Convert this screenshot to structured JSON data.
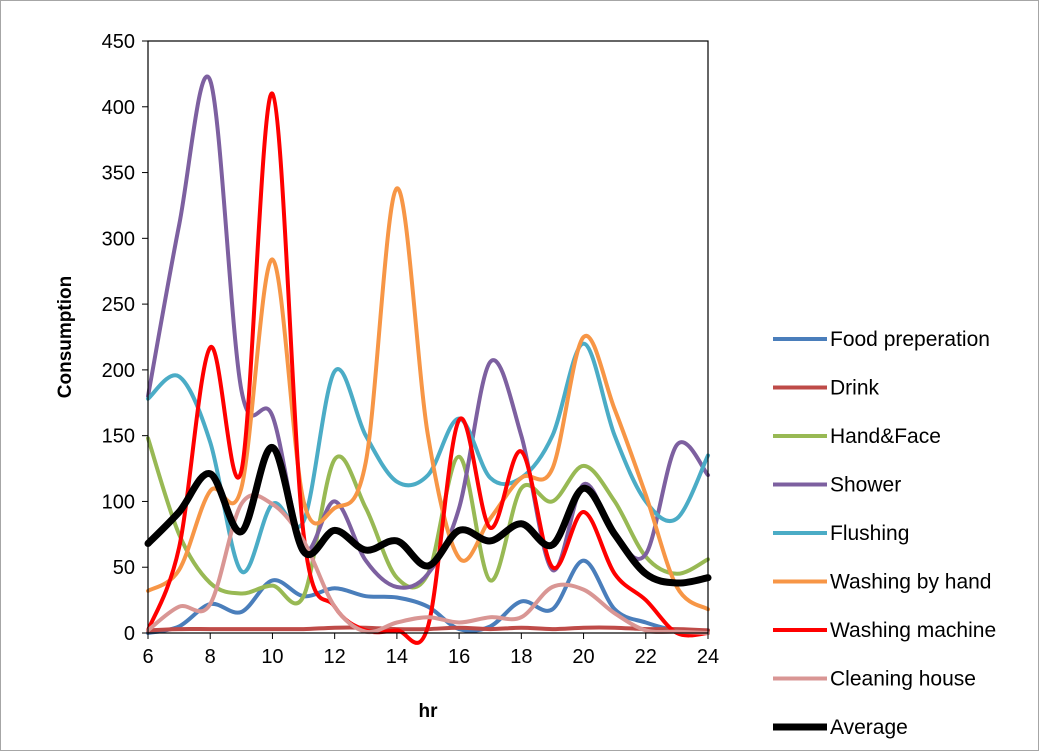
{
  "chart_data": {
    "type": "line",
    "xlabel": "hr",
    "ylabel": "Consumption",
    "xlim": [
      6,
      24
    ],
    "ylim": [
      0,
      450
    ],
    "xticks": [
      6,
      8,
      10,
      12,
      14,
      16,
      18,
      20,
      22,
      24
    ],
    "yticks": [
      0,
      50,
      100,
      150,
      200,
      250,
      300,
      350,
      400,
      450
    ],
    "grid": false,
    "legend_position": "right",
    "smoothed": true,
    "x": [
      6,
      7,
      8,
      9,
      10,
      11,
      12,
      13,
      14,
      15,
      16,
      17,
      18,
      19,
      20,
      21,
      22,
      23,
      24
    ],
    "series": [
      {
        "name": "Food preperation",
        "color": "#4a7ebb",
        "width": 4,
        "values": [
          0,
          5,
          22,
          16,
          40,
          28,
          34,
          28,
          27,
          20,
          3,
          5,
          24,
          18,
          55,
          18,
          8,
          2,
          2
        ]
      },
      {
        "name": "Drink",
        "color": "#be4b48",
        "width": 4,
        "values": [
          2,
          3,
          3,
          3,
          3,
          3,
          4,
          4,
          3,
          3,
          4,
          3,
          4,
          3,
          4,
          4,
          3,
          3,
          2
        ]
      },
      {
        "name": "Hand&Face",
        "color": "#98b954",
        "width": 4,
        "values": [
          148,
          75,
          38,
          30,
          36,
          28,
          132,
          95,
          42,
          45,
          134,
          40,
          110,
          100,
          127,
          100,
          58,
          45,
          56
        ]
      },
      {
        "name": "Shower",
        "color": "#7d60a0",
        "width": 4,
        "values": [
          180,
          310,
          420,
          185,
          165,
          64,
          100,
          55,
          35,
          45,
          95,
          206,
          150,
          48,
          113,
          75,
          60,
          143,
          120
        ]
      },
      {
        "name": "Flushing",
        "color": "#4bacc6",
        "width": 4,
        "values": [
          178,
          195,
          145,
          47,
          98,
          85,
          199,
          150,
          115,
          120,
          163,
          118,
          118,
          150,
          220,
          150,
          100,
          87,
          135
        ]
      },
      {
        "name": "Washing by hand",
        "color": "#f79646",
        "width": 4,
        "values": [
          32,
          48,
          108,
          110,
          284,
          100,
          95,
          130,
          338,
          150,
          57,
          87,
          118,
          125,
          225,
          170,
          105,
          35,
          18
        ]
      },
      {
        "name": "Washing machine",
        "color": "#ff0000",
        "width": 4,
        "values": [
          2,
          65,
          217,
          123,
          410,
          75,
          20,
          2,
          2,
          5,
          162,
          80,
          138,
          50,
          92,
          45,
          25,
          0,
          0
        ]
      },
      {
        "name": "Cleaning house",
        "color": "#d99694",
        "width": 4,
        "values": [
          2,
          20,
          22,
          98,
          98,
          70,
          20,
          1,
          8,
          12,
          8,
          12,
          12,
          35,
          33,
          15,
          2,
          1,
          0
        ]
      },
      {
        "name": "Average",
        "color": "#000000",
        "width": 7,
        "values": [
          68,
          92,
          121,
          77,
          141,
          62,
          78,
          63,
          70,
          51,
          78,
          70,
          83,
          67,
          110,
          75,
          45,
          38,
          42
        ]
      }
    ]
  }
}
